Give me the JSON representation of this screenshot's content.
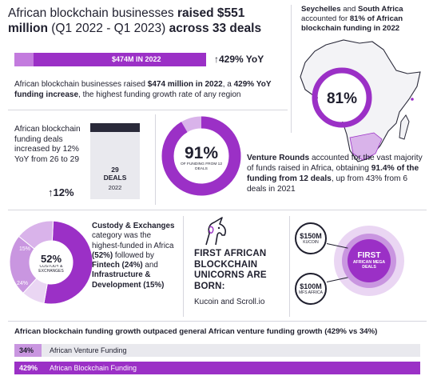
{
  "header": {
    "title_part1": "African blockchain businesses ",
    "title_bold1": "raised $551 million",
    "title_part2": " (Q1 2022 - Q1 2023) ",
    "title_bold2": "across 33 deals"
  },
  "seychelles": {
    "country1": "Seychelles",
    "and": " and ",
    "country2": "South Africa",
    "text1": " accounted for ",
    "pct_bold": "81% of African blockchain funding in 2022",
    "badge": "81%"
  },
  "funding_2022": {
    "bar_label": "$474M IN 2022",
    "bar_fill_fraction": 0.9,
    "yoy": "↑429% YoY",
    "desc_1": "African blockchain businesses raised ",
    "desc_bold1": "$474 million in 2022",
    "desc_2": ", a ",
    "desc_bold2": "429% YoY funding increase",
    "desc_3": ", the highest funding growth rate of any region"
  },
  "deals": {
    "text": "African blockchain funding deals increased by 12% YoY from 26 to 29",
    "pct": "↑12%",
    "count": "29",
    "count_label": "DEALS",
    "year": "2022"
  },
  "venture": {
    "donut_pct": "91%",
    "donut_sub": "OF FUNDING FROM 12 DEALS",
    "donut_fraction": 0.914,
    "text_bold1": "Venture Rounds",
    "text_1": " accounted for the vast majority of funds raised in Africa, obtaining ",
    "text_bold2": "91.4% of the funding from 12 deals",
    "text_2": ", up from 43% from 6 deals in 2021"
  },
  "custody": {
    "center_pct": "52%",
    "center_label": "CUSTODY & EXCHANGES",
    "seg_labels": [
      "15%",
      "24%"
    ],
    "segments": [
      52,
      24,
      15,
      9
    ],
    "text_bold1": "Custody & Exchanges",
    "text_1": " category was the highest-funded in Africa ",
    "text_bold2": "(52%)",
    "text_2": " followed by ",
    "text_bold3": "Fintech (24%)",
    "text_3": " and ",
    "text_bold4": "Infrastructure & Development (15%)"
  },
  "unicorns": {
    "title": "FIRST AFRICAN BLOCKCHAIN UNICORNS ARE BORN:",
    "subtitle": "Kucoin and Scroll.io"
  },
  "mega": {
    "deal1_amount": "$150M",
    "deal1_company": "KUCOIN",
    "deal2_amount": "$100M",
    "deal2_company": "MFS AFRICA",
    "first": "FIRST",
    "first_sub": "AFRICAN MEGA DEALS"
  },
  "comparison": {
    "title": "African blockchain funding growth outpaced general African venture funding growth (429% vs 34%)",
    "row1_pct": "34%",
    "row1_label": "African Venture Funding",
    "row2_pct": "429%",
    "row2_label": "African Blockchain Funding"
  },
  "colors": {
    "purple": "#9b30c6",
    "purple_mid": "#c996e0",
    "purple_light": "#ead6f3",
    "dark": "#1f1f2e"
  }
}
